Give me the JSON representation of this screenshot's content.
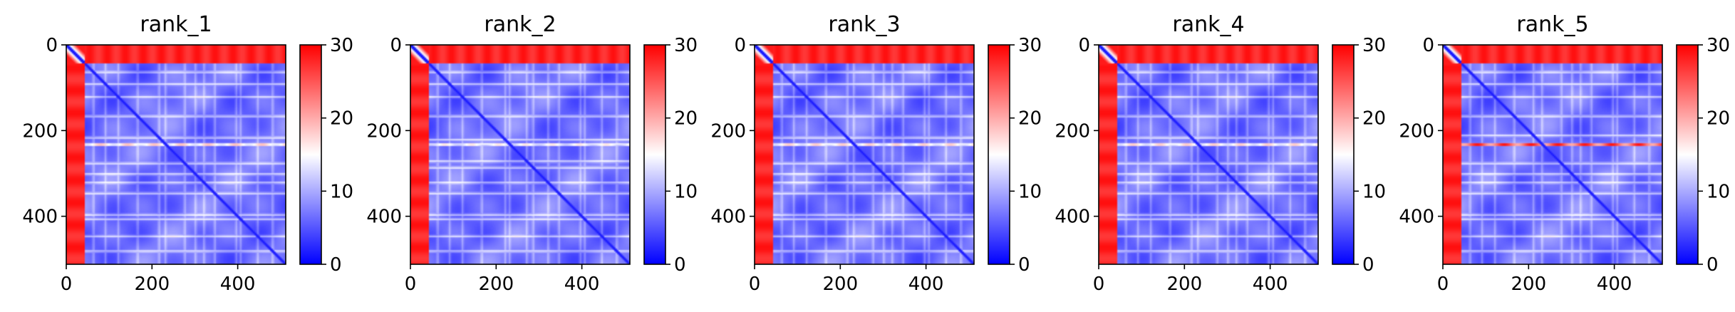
{
  "chart_data": [
    {
      "type": "heatmap",
      "title": "rank_1",
      "xticks": [
        0,
        200,
        400
      ],
      "yticks": [
        0,
        200,
        400
      ],
      "cbar_ticks": [
        0,
        10,
        20,
        30
      ],
      "xlim": [
        0,
        512
      ],
      "ylim": [
        512,
        0
      ],
      "vlim": [
        0,
        30
      ],
      "colormap": "bwr",
      "n": 512,
      "border": 40,
      "bright_rows": [
        62,
        90,
        120,
        165,
        215,
        230,
        275,
        300,
        320,
        345,
        395,
        405,
        445,
        480
      ],
      "hot_row": 230,
      "hot_level": 0.62
    },
    {
      "type": "heatmap",
      "title": "rank_2",
      "xticks": [
        0,
        200,
        400
      ],
      "yticks": [
        0,
        200,
        400
      ],
      "cbar_ticks": [
        0,
        10,
        20,
        30
      ],
      "xlim": [
        0,
        512
      ],
      "ylim": [
        512,
        0
      ],
      "vlim": [
        0,
        30
      ],
      "colormap": "bwr",
      "n": 512,
      "border": 40,
      "bright_rows": [
        62,
        90,
        120,
        165,
        220,
        230,
        270,
        285,
        320,
        345,
        395,
        405,
        445,
        480
      ],
      "hot_row": 230,
      "hot_level": 0.55
    },
    {
      "type": "heatmap",
      "title": "rank_3",
      "xticks": [
        0,
        200,
        400
      ],
      "yticks": [
        0,
        200,
        400
      ],
      "cbar_ticks": [
        0,
        10,
        20,
        30
      ],
      "xlim": [
        0,
        512
      ],
      "ylim": [
        512,
        0
      ],
      "vlim": [
        0,
        30
      ],
      "colormap": "bwr",
      "n": 512,
      "border": 40,
      "bright_rows": [
        62,
        90,
        120,
        165,
        215,
        230,
        275,
        300,
        320,
        345,
        395,
        405,
        445,
        480
      ],
      "hot_row": 230,
      "hot_level": 0.6
    },
    {
      "type": "heatmap",
      "title": "rank_4",
      "xticks": [
        0,
        200,
        400
      ],
      "yticks": [
        0,
        200,
        400
      ],
      "cbar_ticks": [
        0,
        10,
        20,
        30
      ],
      "xlim": [
        0,
        512
      ],
      "ylim": [
        512,
        0
      ],
      "vlim": [
        0,
        30
      ],
      "colormap": "bwr",
      "n": 512,
      "border": 40,
      "bright_rows": [
        62,
        90,
        120,
        165,
        215,
        230,
        275,
        300,
        320,
        345,
        395,
        405,
        445,
        480
      ],
      "hot_row": 230,
      "hot_level": 0.6
    },
    {
      "type": "heatmap",
      "title": "rank_5",
      "xticks": [
        0,
        200,
        400
      ],
      "yticks": [
        0,
        200,
        400
      ],
      "cbar_ticks": [
        0,
        10,
        20,
        30
      ],
      "xlim": [
        0,
        512
      ],
      "ylim": [
        512,
        0
      ],
      "vlim": [
        0,
        30
      ],
      "colormap": "bwr",
      "n": 512,
      "border": 40,
      "bright_rows": [
        62,
        90,
        120,
        165,
        210,
        230,
        275,
        300,
        320,
        345,
        395,
        405,
        445,
        480
      ],
      "hot_row": 230,
      "hot_level": 0.95
    }
  ]
}
